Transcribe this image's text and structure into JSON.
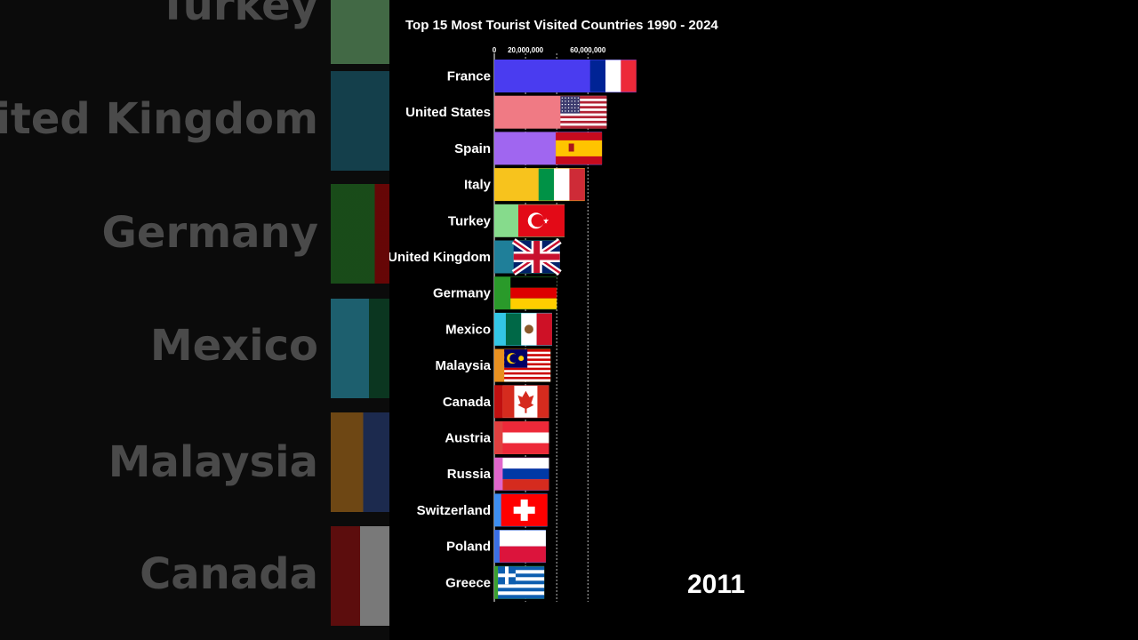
{
  "chart_data": {
    "type": "bar",
    "orientation": "horizontal",
    "title": "Top 15 Most Tourist Visited Countries 1990 - 2024",
    "year": "2011",
    "xlim": [
      0,
      120000000
    ],
    "xticks": [
      0,
      20000000,
      60000000
    ],
    "xtick_labels": [
      "0",
      "20,000,000",
      "60,000,000"
    ],
    "gridlines": [
      20000000,
      40000000,
      60000000
    ],
    "categories": [
      "France",
      "United States",
      "Spain",
      "Italy",
      "Turkey",
      "United Kingdom",
      "Germany",
      "Mexico",
      "Malaysia",
      "Canada",
      "Austria",
      "Russia",
      "Switzerland",
      "Poland",
      "Greece"
    ],
    "values": [
      91000000,
      72000000,
      69000000,
      58000000,
      45000000,
      42000000,
      40000000,
      37000000,
      36000000,
      35000000,
      35000000,
      35000000,
      34000000,
      33000000,
      32000000
    ],
    "colors": [
      "#4a3cf0",
      "#f07a84",
      "#a066f0",
      "#f7c31d",
      "#86db8c",
      "#1f7f99",
      "#2a9a2a",
      "#33c6e6",
      "#e89020",
      "#c01010",
      "#e04040",
      "#e066cc",
      "#3d8ef0",
      "#3a6fe6",
      "#3aa030"
    ],
    "flags": [
      "france-flag",
      "usa-flag",
      "spain-flag",
      "italy-flag",
      "turkey-flag",
      "uk-flag",
      "germany-flag",
      "mexico-flag",
      "malaysia-flag",
      "canada-flag",
      "austria-flag",
      "russia-flag",
      "switzerland-flag",
      "poland-flag",
      "greece-flag"
    ]
  },
  "background": {
    "labels": [
      "Turkey",
      "United Kingdom",
      "Germany",
      "Mexico",
      "Malaysia",
      "Canada"
    ]
  }
}
